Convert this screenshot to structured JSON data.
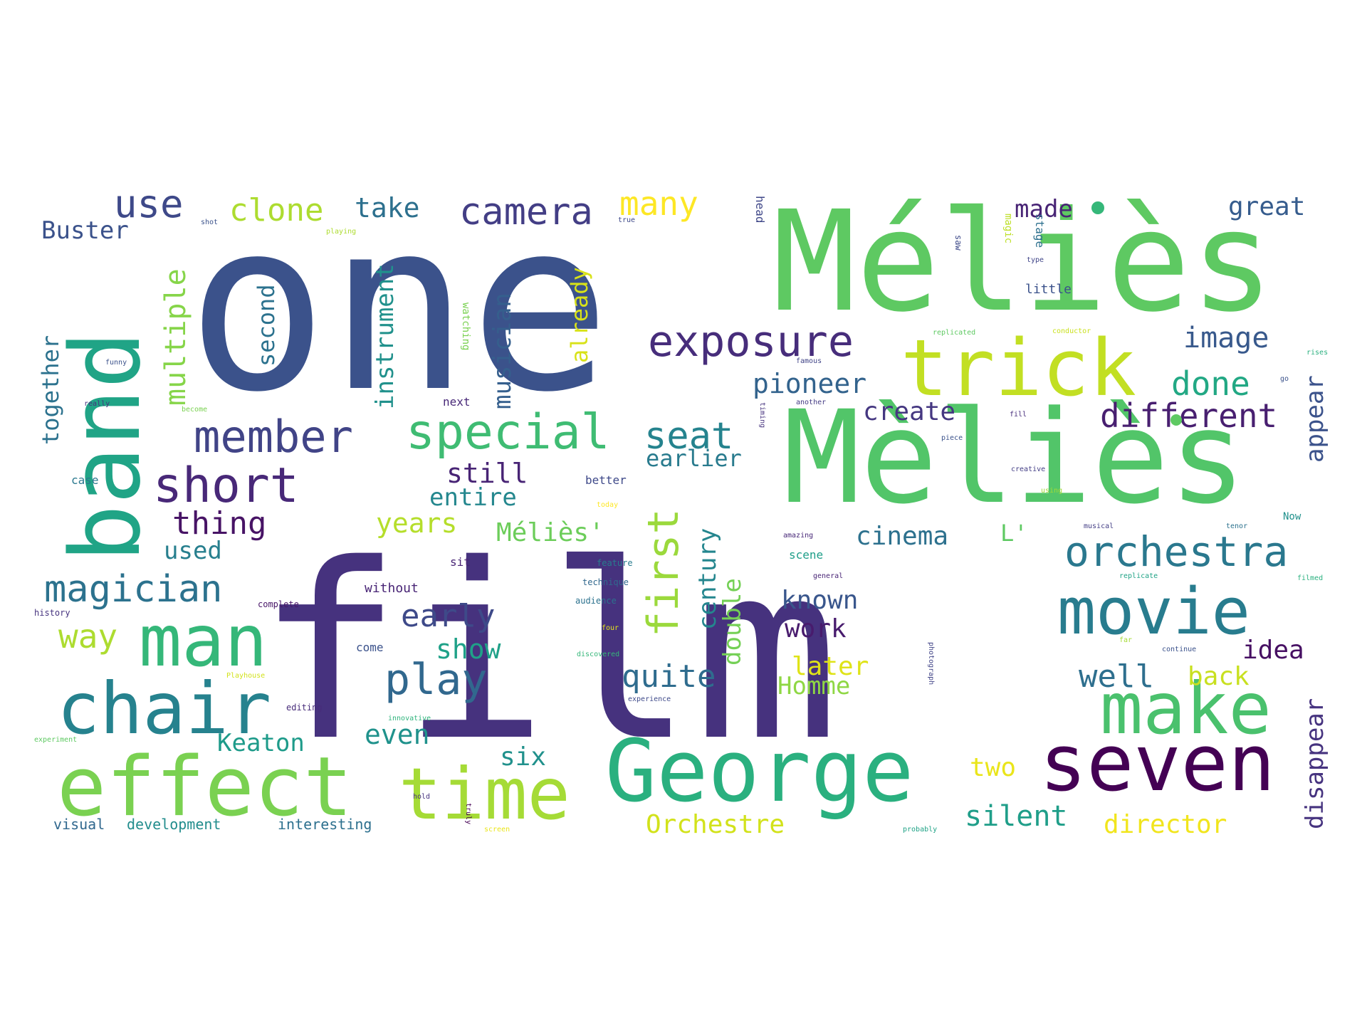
{
  "words": [
    {
      "text": "one",
      "color": "#3b528b"
    },
    {
      "text": "film",
      "color": "#46327e"
    },
    {
      "text": "Méliès",
      "color": "#5ec962"
    },
    {
      "text": "Mèliès",
      "color": "#52c569"
    },
    {
      "text": "band",
      "color": "#20a486"
    },
    {
      "text": "trick",
      "color": "#c2df23"
    },
    {
      "text": "George",
      "color": "#2ab07f"
    },
    {
      "text": "seven",
      "color": "#440154"
    },
    {
      "text": "effect",
      "color": "#7ad151"
    },
    {
      "text": "time",
      "color": "#a5db36"
    },
    {
      "text": "make",
      "color": "#4ac16d"
    },
    {
      "text": "chair",
      "color": "#26828e"
    },
    {
      "text": "man",
      "color": "#35b779"
    },
    {
      "text": "movie",
      "color": "#287c8e"
    },
    {
      "text": "special",
      "color": "#3fbc73"
    },
    {
      "text": "exposure",
      "color": "#472d7b"
    },
    {
      "text": "short",
      "color": "#482878"
    },
    {
      "text": "member",
      "color": "#414487"
    },
    {
      "text": "camera",
      "color": "#433e85"
    },
    {
      "text": "orchestra",
      "color": "#2a788e"
    },
    {
      "text": "first",
      "color": "#9bd93c"
    },
    {
      "text": "play",
      "color": "#31688e"
    },
    {
      "text": "magician",
      "color": "#2c728e"
    },
    {
      "text": "different",
      "color": "#481f70"
    },
    {
      "text": "seat",
      "color": "#25838e"
    },
    {
      "text": "use",
      "color": "#3e4989"
    },
    {
      "text": "clone",
      "color": "#addc30"
    },
    {
      "text": "take",
      "color": "#2d708e"
    },
    {
      "text": "many",
      "color": "#fde725"
    },
    {
      "text": "image",
      "color": "#38598c"
    },
    {
      "text": "done",
      "color": "#22a884"
    },
    {
      "text": "pioneer",
      "color": "#33638d"
    },
    {
      "text": "multiple",
      "color": "#86d549"
    },
    {
      "text": "Buster",
      "color": "#3b528b"
    },
    {
      "text": "great",
      "color": "#365c8d"
    },
    {
      "text": "made",
      "color": "#482475"
    },
    {
      "text": "thing",
      "color": "#471365"
    },
    {
      "text": "early",
      "color": "#3e4a89"
    },
    {
      "text": "quite",
      "color": "#2f6c8e"
    },
    {
      "text": "well",
      "color": "#2e6f8e"
    },
    {
      "text": "idea",
      "color": "#471063"
    },
    {
      "text": "create",
      "color": "#453781"
    },
    {
      "text": "earlier",
      "color": "#297b8e"
    },
    {
      "text": "still",
      "color": "#482475"
    },
    {
      "text": "entire",
      "color": "#24878e"
    },
    {
      "text": "years",
      "color": "#b5de2b"
    },
    {
      "text": "Méliès'",
      "color": "#6ccd5a"
    },
    {
      "text": "cinema",
      "color": "#2d718e"
    },
    {
      "text": "known",
      "color": "#39568c"
    },
    {
      "text": "work",
      "color": "#481b6d"
    },
    {
      "text": "show",
      "color": "#1fa188"
    },
    {
      "text": "way",
      "color": "#addc30"
    },
    {
      "text": "used",
      "color": "#277f8e"
    },
    {
      "text": "later",
      "color": "#dfe318"
    },
    {
      "text": "Homme",
      "color": "#8fd744"
    },
    {
      "text": "back",
      "color": "#c8e020"
    },
    {
      "text": "six",
      "color": "#21918c"
    },
    {
      "text": "even",
      "color": "#20928c"
    },
    {
      "text": "Keaton",
      "color": "#1e9b8a"
    },
    {
      "text": "two",
      "color": "#eae51a"
    },
    {
      "text": "silent",
      "color": "#1f9e89"
    },
    {
      "text": "director",
      "color": "#f1e51d"
    },
    {
      "text": "Orchestre",
      "color": "#d2e21b"
    },
    {
      "text": "instrument",
      "color": "#21918c"
    },
    {
      "text": "second",
      "color": "#2c728e"
    },
    {
      "text": "together",
      "color": "#2c728e"
    },
    {
      "text": "musician",
      "color": "#355f8d"
    },
    {
      "text": "already",
      "color": "#d8e219"
    },
    {
      "text": "century",
      "color": "#24868e"
    },
    {
      "text": "double",
      "color": "#74d055"
    },
    {
      "text": "appear",
      "color": "#3b528b"
    },
    {
      "text": "disappear",
      "color": "#46337f"
    },
    {
      "text": "L'",
      "color": "#5ec962"
    },
    {
      "text": "visual",
      "color": "#31688e"
    },
    {
      "text": "development",
      "color": "#228d8d"
    },
    {
      "text": "interesting",
      "color": "#2d708e"
    },
    {
      "text": "little",
      "color": "#3b528b"
    },
    {
      "text": "next",
      "color": "#482878"
    },
    {
      "text": "better",
      "color": "#3e4989"
    },
    {
      "text": "without",
      "color": "#482475"
    },
    {
      "text": "sit",
      "color": "#482475"
    },
    {
      "text": "come",
      "color": "#3b528b"
    },
    {
      "text": "case",
      "color": "#2a788e"
    },
    {
      "text": "history",
      "color": "#46337f"
    },
    {
      "text": "complete",
      "color": "#481668"
    },
    {
      "text": "scene",
      "color": "#1f9e89"
    },
    {
      "text": "feature",
      "color": "#287c8e"
    },
    {
      "text": "audience",
      "color": "#2c728e"
    },
    {
      "text": "technique",
      "color": "#31688e"
    },
    {
      "text": "editing",
      "color": "#472c7a"
    },
    {
      "text": "watching",
      "color": "#7ad151"
    },
    {
      "text": "head",
      "color": "#3f4788"
    },
    {
      "text": "magic",
      "color": "#bddf26"
    },
    {
      "text": "stage",
      "color": "#2d708e"
    },
    {
      "text": "saw",
      "color": "#3e4a89"
    },
    {
      "text": "type",
      "color": "#404588"
    },
    {
      "text": "conductor",
      "color": "#cae11f"
    },
    {
      "text": "replicated",
      "color": "#5ec962"
    },
    {
      "text": "famous",
      "color": "#414487"
    },
    {
      "text": "another",
      "color": "#443b84"
    },
    {
      "text": "creative",
      "color": "#433e85"
    },
    {
      "text": "using",
      "color": "#a2da37"
    },
    {
      "text": "today",
      "color": "#fde725"
    },
    {
      "text": "Playhouse",
      "color": "#d2e21b"
    },
    {
      "text": "four",
      "color": "#e5e419"
    },
    {
      "text": "discovered",
      "color": "#35b779"
    },
    {
      "text": "experience",
      "color": "#3e4989"
    },
    {
      "text": "innovative",
      "color": "#2fb47c"
    },
    {
      "text": "hold",
      "color": "#46327e"
    },
    {
      "text": "truly",
      "color": "#440154"
    },
    {
      "text": "screen",
      "color": "#eae51a"
    },
    {
      "text": "probably",
      "color": "#20a386"
    },
    {
      "text": "continue",
      "color": "#3b528b"
    },
    {
      "text": "photograph",
      "color": "#414487"
    },
    {
      "text": "general",
      "color": "#482475"
    },
    {
      "text": "amazing",
      "color": "#482878"
    },
    {
      "text": "replicate",
      "color": "#20a386"
    },
    {
      "text": "filmed",
      "color": "#2ab07f"
    },
    {
      "text": "musical",
      "color": "#433e85"
    },
    {
      "text": "Now",
      "color": "#21918c"
    },
    {
      "text": "fill",
      "color": "#472d7b"
    },
    {
      "text": "piece",
      "color": "#3b528b"
    },
    {
      "text": "funny",
      "color": "#3b528b"
    },
    {
      "text": "really",
      "color": "#46327e"
    },
    {
      "text": "become",
      "color": "#7ad151"
    },
    {
      "text": "shot",
      "color": "#3b528b"
    },
    {
      "text": "true",
      "color": "#3e4989"
    },
    {
      "text": "playing",
      "color": "#addc30"
    },
    {
      "text": "experiment",
      "color": "#5ec962"
    },
    {
      "text": "far",
      "color": "#a5db36"
    },
    {
      "text": "rises",
      "color": "#2ab07f"
    },
    {
      "text": "go",
      "color": "#3b528b"
    },
    {
      "text": "tenor",
      "color": "#2c728e"
    },
    {
      "text": "timing",
      "color": "#46327e"
    },
    {
      "text": "dot",
      "color": "#35b779"
    },
    {
      "text": "dot2",
      "color": "#5ec962"
    }
  ]
}
